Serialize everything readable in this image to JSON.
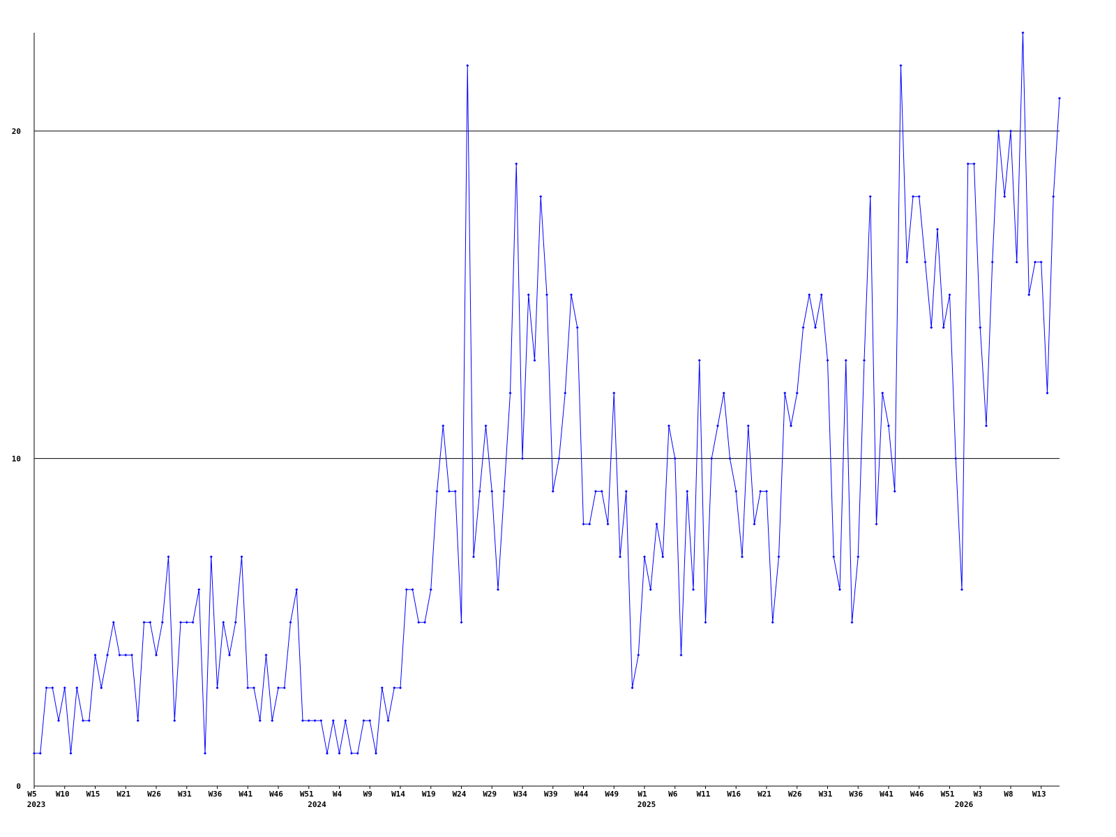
{
  "chart_data": {
    "type": "line",
    "categories": [
      "W5",
      null,
      null,
      null,
      null,
      "W10",
      null,
      null,
      null,
      null,
      "W15",
      null,
      null,
      null,
      null,
      "W21",
      null,
      null,
      null,
      null,
      "W26",
      null,
      null,
      null,
      null,
      "W31",
      null,
      null,
      null,
      null,
      "W36",
      null,
      null,
      null,
      null,
      "W41",
      null,
      null,
      null,
      null,
      "W46",
      null,
      null,
      null,
      null,
      "W51",
      null,
      null,
      null,
      null,
      "W4",
      null,
      null,
      null,
      null,
      "W9",
      null,
      null,
      null,
      null,
      "W14",
      null,
      null,
      null,
      null,
      "W19",
      null,
      null,
      null,
      null,
      "W24",
      null,
      null,
      null,
      null,
      "W29",
      null,
      null,
      null,
      null,
      "W34",
      null,
      null,
      null,
      null,
      "W39",
      null,
      null,
      null,
      null,
      "W44",
      null,
      null,
      null,
      null,
      "W49",
      null,
      null,
      null,
      null,
      "W1",
      null,
      null,
      null,
      null,
      "W6",
      null,
      null,
      null,
      null,
      "W11",
      null,
      null,
      null,
      null,
      "W16",
      null,
      null,
      null,
      null,
      "W21",
      null,
      null,
      null,
      null,
      "W26",
      null,
      null,
      null,
      null,
      "W31",
      null,
      null,
      null,
      null,
      "W36",
      null,
      null,
      null,
      null,
      "W41",
      null,
      null,
      null,
      null,
      "W46",
      null,
      null,
      null,
      null,
      "W51",
      null,
      null,
      null,
      null,
      "W3",
      null,
      null,
      null,
      null,
      "W8",
      null,
      null,
      null,
      null,
      "W13",
      null,
      null,
      null
    ],
    "category_years": [
      "2023",
      null,
      null,
      null,
      null,
      null,
      null,
      null,
      null,
      null,
      null,
      null,
      null,
      null,
      null,
      null,
      null,
      null,
      null,
      null,
      null,
      null,
      null,
      null,
      null,
      null,
      null,
      null,
      null,
      null,
      null,
      null,
      null,
      null,
      null,
      null,
      null,
      null,
      null,
      null,
      null,
      null,
      null,
      null,
      null,
      null,
      "2024",
      null,
      null,
      null,
      null,
      null,
      null,
      null,
      null,
      null,
      null,
      null,
      null,
      null,
      null,
      null,
      null,
      null,
      null,
      null,
      null,
      null,
      null,
      null,
      null,
      null,
      null,
      null,
      null,
      null,
      null,
      null,
      null,
      null,
      null,
      null,
      null,
      null,
      null,
      null,
      null,
      null,
      null,
      null,
      null,
      null,
      null,
      null,
      null,
      null,
      null,
      null,
      null,
      null,
      "2025",
      null,
      null,
      null,
      null,
      null,
      null,
      null,
      null,
      null,
      null,
      null,
      null,
      null,
      null,
      null,
      null,
      null,
      null,
      null,
      null,
      null,
      null,
      null,
      null,
      null,
      null,
      null,
      null,
      null,
      null,
      null,
      null,
      null,
      null,
      null,
      null,
      null,
      null,
      null,
      null,
      null,
      null,
      null,
      null,
      null,
      null,
      null,
      null,
      null,
      null,
      null,
      "2026",
      null,
      null,
      null,
      null,
      null,
      null,
      null,
      null,
      null,
      null,
      null,
      null,
      null,
      null,
      null,
      null
    ],
    "values": [
      1,
      1,
      3,
      3,
      2,
      3,
      1,
      3,
      2,
      2,
      4,
      3,
      4,
      5,
      4,
      4,
      4,
      2,
      5,
      5,
      4,
      5,
      7,
      2,
      5,
      5,
      5,
      6,
      1,
      7,
      3,
      5,
      4,
      5,
      7,
      3,
      3,
      2,
      4,
      2,
      3,
      3,
      5,
      6,
      2,
      2,
      2,
      2,
      1,
      2,
      1,
      2,
      1,
      1,
      2,
      2,
      1,
      3,
      2,
      3,
      3,
      6,
      6,
      5,
      5,
      6,
      9,
      11,
      9,
      9,
      5,
      22,
      7,
      9,
      11,
      9,
      6,
      9,
      12,
      19,
      10,
      15,
      13,
      18,
      15,
      9,
      10,
      12,
      15,
      14,
      8,
      8,
      9,
      9,
      8,
      12,
      7,
      9,
      3,
      4,
      7,
      6,
      8,
      7,
      11,
      10,
      4,
      9,
      6,
      13,
      5,
      10,
      11,
      12,
      10,
      9,
      7,
      11,
      8,
      9,
      9,
      5,
      7,
      12,
      11,
      12,
      14,
      15,
      14,
      15,
      13,
      7,
      6,
      13,
      5,
      7,
      13,
      18,
      8,
      12,
      11,
      9,
      22,
      16,
      18,
      18,
      16,
      14,
      17,
      14,
      15,
      10,
      6,
      19,
      19,
      14,
      11,
      16,
      20,
      18,
      20,
      16,
      23,
      15,
      16,
      16,
      12,
      18,
      21
    ],
    "color": "#0000ff",
    "ylim": [
      0,
      23
    ],
    "yticks": [
      0,
      10,
      20
    ],
    "grid": true
  }
}
